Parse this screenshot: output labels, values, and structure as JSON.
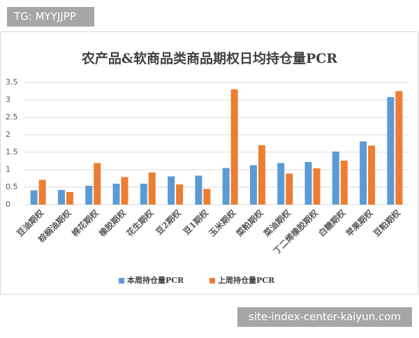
{
  "watermarks": [
    "TG: MYYJJPP",
    "site-index-center-kaiyun.com"
  ],
  "chart_data": {
    "type": "bar",
    "title": "农产品&软商品类商品期权日均持仓量PCR",
    "categories": [
      "豆油期权",
      "棕榈油期权",
      "棉花期权",
      "橡胶期权",
      "花生期权",
      "豆2期权",
      "豆1期权",
      "玉米期权",
      "菜粕期权",
      "菜油期权",
      "丁二烯橡胶期权",
      "白糖期权",
      "苹果期权",
      "豆粕期权"
    ],
    "series": [
      {
        "name": "本周持仓量PCR",
        "color": "#5b9bd5",
        "values": [
          0.41,
          0.42,
          0.54,
          0.6,
          0.6,
          0.81,
          0.83,
          1.05,
          1.13,
          1.19,
          1.22,
          1.52,
          1.81,
          3.08
        ]
      },
      {
        "name": "上周持仓量PCR",
        "color": "#ed7d31",
        "values": [
          0.71,
          0.36,
          1.19,
          0.79,
          0.92,
          0.58,
          0.45,
          3.3,
          1.7,
          0.89,
          1.04,
          1.26,
          1.69,
          3.25
        ]
      }
    ],
    "ylim": [
      0,
      3.5
    ],
    "yticks": [
      0,
      0.5,
      1,
      1.5,
      2,
      2.5,
      3,
      3.5
    ],
    "grid": true,
    "legend": "bottom"
  }
}
